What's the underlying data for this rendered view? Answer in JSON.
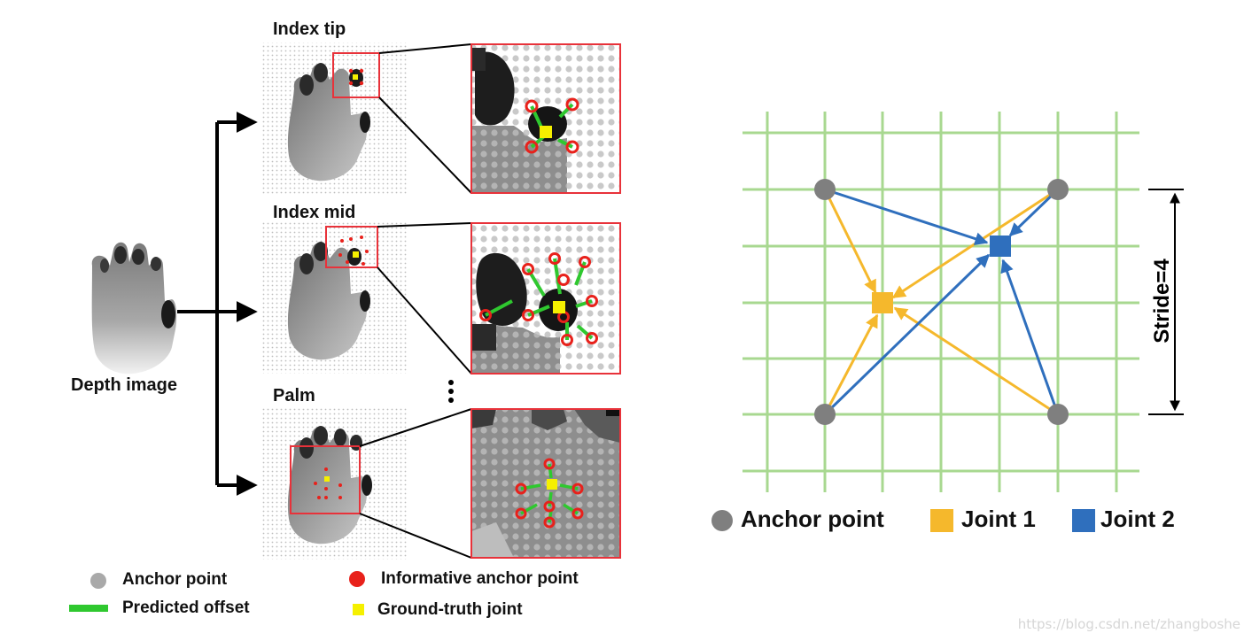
{
  "left_panel": {
    "depth_image_label": "Depth image",
    "panels": [
      {
        "label": "Index tip"
      },
      {
        "label": "Index mid"
      },
      {
        "label": "Palm"
      }
    ],
    "legend": {
      "anchor_point": "Anchor point",
      "informative_anchor_point": "Informative anchor point",
      "predicted_offset": "Predicted offset",
      "ground_truth_joint": "Ground-truth joint"
    }
  },
  "right_panel": {
    "stride_label": "Stride=4",
    "legend": {
      "anchor_point": "Anchor point",
      "joint1": "Joint 1",
      "joint2": "Joint 2"
    }
  },
  "colors": {
    "grid_green": "#a8d890",
    "anchor_gray": "#7f7f7f",
    "joint1_orange": "#f5b82c",
    "joint2_blue": "#2f6fbd",
    "informative_red": "#e8211b",
    "offset_green": "#2fc82f",
    "gt_yellow": "#f5f000",
    "frame_red": "#e8323a"
  },
  "watermark": "https://blog.csdn.net/zhangboshe"
}
